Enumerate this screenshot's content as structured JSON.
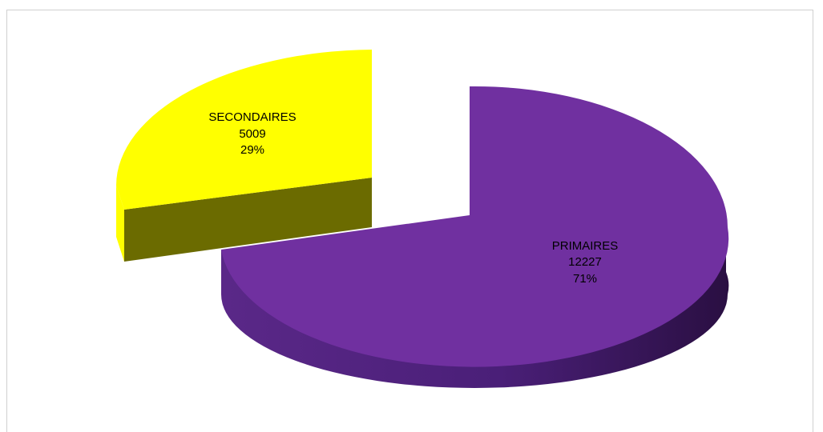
{
  "chart_data": {
    "type": "pie",
    "style": "3d-exploded",
    "title": "",
    "slices": [
      {
        "label": "SECONDAIRES",
        "value": 5009,
        "percent": "29%",
        "color": "#ffff00",
        "side_color": "#6b6b00"
      },
      {
        "label": "PRIMAIRES",
        "value": 12227,
        "percent": "71%",
        "color": "#7030a0",
        "side_color": "#3d1a60"
      }
    ]
  }
}
